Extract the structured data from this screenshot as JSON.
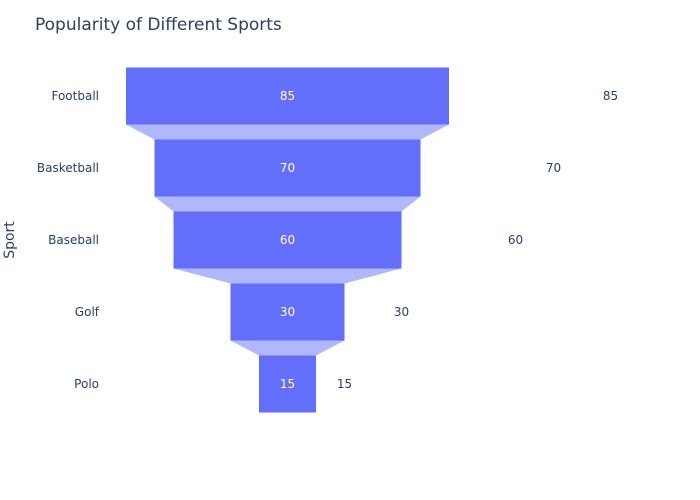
{
  "chart_data": {
    "type": "funnel",
    "title": "Popularity of Different Sports",
    "xlabel": "",
    "ylabel": "Sport",
    "categories": [
      "Football",
      "Basketball",
      "Baseball",
      "Golf",
      "Polo"
    ],
    "values": [
      85,
      70,
      60,
      30,
      15
    ],
    "text_labels_outside": [
      85,
      70,
      60,
      30,
      15
    ],
    "grid": false,
    "legend": "none",
    "colors": {
      "bar": "#636efa",
      "connector": "#b0b7fb",
      "text": "#2a3f5f",
      "inside_text": "#ffffff",
      "background": "#ffffff"
    }
  }
}
